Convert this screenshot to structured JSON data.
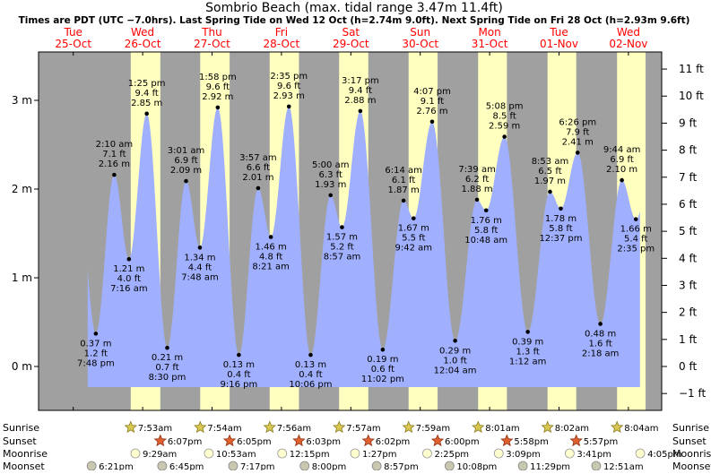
{
  "title": "Sombrio Beach (max. tidal range 3.47m 11.4ft)",
  "subtitle": "Times are PDT (UTC −7.0hrs). Last Spring Tide on Wed 12 Oct (h=2.74m 9.0ft). Next Spring Tide on Fri 28 Oct (h=2.93m 9.6ft)",
  "colors": {
    "day": "#ffffc0",
    "night": "#a0a0a0",
    "water": "#a0b0ff",
    "date_red": "#ff0000"
  },
  "chart_data": {
    "type": "area",
    "y_left_ticks": [
      {
        "v": 0,
        "label": "0 m"
      },
      {
        "v": 1,
        "label": "1 m"
      },
      {
        "v": 2,
        "label": "2 m"
      },
      {
        "v": 3,
        "label": "3 m"
      }
    ],
    "y_right_ticks": [
      {
        "ft": -1,
        "label": "−1 ft"
      },
      {
        "ft": 0,
        "label": "0 ft"
      },
      {
        "ft": 1,
        "label": "1 ft"
      },
      {
        "ft": 2,
        "label": "2 ft"
      },
      {
        "ft": 3,
        "label": "3 ft"
      },
      {
        "ft": 4,
        "label": "4 ft"
      },
      {
        "ft": 5,
        "label": "5 ft"
      },
      {
        "ft": 6,
        "label": "6 ft"
      },
      {
        "ft": 7,
        "label": "7 ft"
      },
      {
        "ft": 8,
        "label": "8 ft"
      },
      {
        "ft": 9,
        "label": "9 ft"
      },
      {
        "ft": 10,
        "label": "10 ft"
      },
      {
        "ft": 11,
        "label": "11 ft"
      }
    ],
    "days": [
      {
        "dow": "Tue",
        "date": "25-Oct"
      },
      {
        "dow": "Wed",
        "date": "26-Oct"
      },
      {
        "dow": "Thu",
        "date": "27-Oct"
      },
      {
        "dow": "Fri",
        "date": "28-Oct"
      },
      {
        "dow": "Sat",
        "date": "29-Oct"
      },
      {
        "dow": "Sun",
        "date": "30-Oct"
      },
      {
        "dow": "Mon",
        "date": "31-Oct"
      },
      {
        "dow": "Tue",
        "date": "01-Nov"
      },
      {
        "dow": "Wed",
        "date": "02-Nov"
      }
    ],
    "daylight": [
      {
        "rise": "2016-10-26 07:53",
        "set": "2016-10-26 18:07"
      },
      {
        "rise": "2016-10-27 07:54",
        "set": "2016-10-27 18:05"
      },
      {
        "rise": "2016-10-28 07:56",
        "set": "2016-10-28 18:03"
      },
      {
        "rise": "2016-10-29 07:57",
        "set": "2016-10-29 18:02"
      },
      {
        "rise": "2016-10-30 07:59",
        "set": "2016-10-30 18:00"
      },
      {
        "rise": "2016-10-31 08:01",
        "set": "2016-10-31 17:58"
      },
      {
        "rise": "2016-11-01 08:02",
        "set": "2016-11-01 17:57"
      },
      {
        "rise": "2016-11-02 08:04",
        "set": "2016-11-02 17:56"
      }
    ],
    "tides": [
      {
        "t": "2016-10-25 19:48",
        "m": 0.37,
        "m_label": "0.37 m",
        "ft_label": "1.2 ft",
        "time_label": "7:48 pm",
        "type": "low"
      },
      {
        "t": "2016-10-26 02:10",
        "m": 2.16,
        "m_label": "2.16 m",
        "ft_label": "7.1 ft",
        "time_label": "2:10 am",
        "type": "high"
      },
      {
        "t": "2016-10-26 07:16",
        "m": 1.21,
        "m_label": "1.21 m",
        "ft_label": "4.0 ft",
        "time_label": "7:16 am",
        "type": "low"
      },
      {
        "t": "2016-10-26 13:25",
        "m": 2.85,
        "m_label": "2.85 m",
        "ft_label": "9.4 ft",
        "time_label": "1:25 pm",
        "type": "high"
      },
      {
        "t": "2016-10-26 20:30",
        "m": 0.21,
        "m_label": "0.21 m",
        "ft_label": "0.7 ft",
        "time_label": "8:30 pm",
        "type": "low"
      },
      {
        "t": "2016-10-27 03:01",
        "m": 2.09,
        "m_label": "2.09 m",
        "ft_label": "6.9 ft",
        "time_label": "3:01 am",
        "type": "high"
      },
      {
        "t": "2016-10-27 07:48",
        "m": 1.34,
        "m_label": "1.34 m",
        "ft_label": "4.4 ft",
        "time_label": "7:48 am",
        "type": "low"
      },
      {
        "t": "2016-10-27 13:58",
        "m": 2.92,
        "m_label": "2.92 m",
        "ft_label": "9.6 ft",
        "time_label": "1:58 pm",
        "type": "high"
      },
      {
        "t": "2016-10-27 21:16",
        "m": 0.13,
        "m_label": "0.13 m",
        "ft_label": "0.4 ft",
        "time_label": "9:16 pm",
        "type": "low"
      },
      {
        "t": "2016-10-28 03:57",
        "m": 2.01,
        "m_label": "2.01 m",
        "ft_label": "6.6 ft",
        "time_label": "3:57 am",
        "type": "high"
      },
      {
        "t": "2016-10-28 08:21",
        "m": 1.46,
        "m_label": "1.46 m",
        "ft_label": "4.8 ft",
        "time_label": "8:21 am",
        "type": "low"
      },
      {
        "t": "2016-10-28 14:35",
        "m": 2.93,
        "m_label": "2.93 m",
        "ft_label": "9.6 ft",
        "time_label": "2:35 pm",
        "type": "high"
      },
      {
        "t": "2016-10-28 22:06",
        "m": 0.13,
        "m_label": "0.13 m",
        "ft_label": "0.4 ft",
        "time_label": "10:06 pm",
        "type": "low"
      },
      {
        "t": "2016-10-29 05:00",
        "m": 1.93,
        "m_label": "1.93 m",
        "ft_label": "6.3 ft",
        "time_label": "5:00 am",
        "type": "high"
      },
      {
        "t": "2016-10-29 08:57",
        "m": 1.57,
        "m_label": "1.57 m",
        "ft_label": "5.2 ft",
        "time_label": "8:57 am",
        "type": "low"
      },
      {
        "t": "2016-10-29 15:17",
        "m": 2.88,
        "m_label": "2.88 m",
        "ft_label": "9.4 ft",
        "time_label": "3:17 pm",
        "type": "high"
      },
      {
        "t": "2016-10-29 23:02",
        "m": 0.19,
        "m_label": "0.19 m",
        "ft_label": "0.6 ft",
        "time_label": "11:02 pm",
        "type": "low"
      },
      {
        "t": "2016-10-30 06:14",
        "m": 1.87,
        "m_label": "1.87 m",
        "ft_label": "6.1 ft",
        "time_label": "6:14 am",
        "type": "high"
      },
      {
        "t": "2016-10-30 09:42",
        "m": 1.67,
        "m_label": "1.67 m",
        "ft_label": "5.5 ft",
        "time_label": "9:42 am",
        "type": "low"
      },
      {
        "t": "2016-10-30 16:07",
        "m": 2.76,
        "m_label": "2.76 m",
        "ft_label": "9.1 ft",
        "time_label": "4:07 pm",
        "type": "high"
      },
      {
        "t": "2016-10-31 00:04",
        "m": 0.29,
        "m_label": "0.29 m",
        "ft_label": "1.0 ft",
        "time_label": "12:04 am",
        "type": "low"
      },
      {
        "t": "2016-10-31 07:39",
        "m": 1.88,
        "m_label": "1.88 m",
        "ft_label": "6.2 ft",
        "time_label": "7:39 am",
        "type": "high"
      },
      {
        "t": "2016-10-31 10:48",
        "m": 1.76,
        "m_label": "1.76 m",
        "ft_label": "5.8 ft",
        "time_label": "10:48 am",
        "type": "low"
      },
      {
        "t": "2016-10-31 17:08",
        "m": 2.59,
        "m_label": "2.59 m",
        "ft_label": "8.5 ft",
        "time_label": "5:08 pm",
        "type": "high"
      },
      {
        "t": "2016-11-01 01:12",
        "m": 0.39,
        "m_label": "0.39 m",
        "ft_label": "1.3 ft",
        "time_label": "1:12 am",
        "type": "low"
      },
      {
        "t": "2016-11-01 08:53",
        "m": 1.97,
        "m_label": "1.97 m",
        "ft_label": "6.5 ft",
        "time_label": "8:53 am",
        "type": "high"
      },
      {
        "t": "2016-11-01 12:37",
        "m": 1.78,
        "m_label": "1.78 m",
        "ft_label": "5.8 ft",
        "time_label": "12:37 pm",
        "type": "low"
      },
      {
        "t": "2016-11-01 18:26",
        "m": 2.41,
        "m_label": "2.41 m",
        "ft_label": "7.9 ft",
        "time_label": "6:26 pm",
        "type": "high"
      },
      {
        "t": "2016-11-02 02:18",
        "m": 0.48,
        "m_label": "0.48 m",
        "ft_label": "1.6 ft",
        "time_label": "2:18 am",
        "type": "low"
      },
      {
        "t": "2016-11-02 09:44",
        "m": 2.1,
        "m_label": "2.10 m",
        "ft_label": "6.9 ft",
        "time_label": "9:44 am",
        "type": "high"
      },
      {
        "t": "2016-11-02 14:35",
        "m": 1.66,
        "m_label": "1.66 m",
        "ft_label": "5.4 ft",
        "time_label": "2:35 pm",
        "type": "low"
      }
    ],
    "bottom_rows": [
      {
        "name": "Sunrise",
        "icon": "sun-icon",
        "events": [
          {
            "t": "2016-10-26 07:53",
            "label": "7:53am"
          },
          {
            "t": "2016-10-27 07:54",
            "label": "7:54am"
          },
          {
            "t": "2016-10-28 07:56",
            "label": "7:56am"
          },
          {
            "t": "2016-10-29 07:57",
            "label": "7:57am"
          },
          {
            "t": "2016-10-30 07:59",
            "label": "7:59am"
          },
          {
            "t": "2016-10-31 08:01",
            "label": "8:01am"
          },
          {
            "t": "2016-11-01 08:02",
            "label": "8:02am"
          },
          {
            "t": "2016-11-02 08:04",
            "label": "8:04am"
          }
        ]
      },
      {
        "name": "Sunset",
        "icon": "sunset-icon",
        "events": [
          {
            "t": "2016-10-26 18:07",
            "label": "6:07pm"
          },
          {
            "t": "2016-10-27 18:05",
            "label": "6:05pm"
          },
          {
            "t": "2016-10-28 18:03",
            "label": "6:03pm"
          },
          {
            "t": "2016-10-29 18:02",
            "label": "6:02pm"
          },
          {
            "t": "2016-10-30 18:00",
            "label": "6:00pm"
          },
          {
            "t": "2016-10-31 17:58",
            "label": "5:58pm"
          },
          {
            "t": "2016-11-01 17:57",
            "label": "5:57pm"
          }
        ]
      },
      {
        "name": "Moonrise",
        "icon": "moonrise-icon",
        "events": [
          {
            "t": "2016-10-26 09:29",
            "label": "9:29am"
          },
          {
            "t": "2016-10-27 10:53",
            "label": "10:53am"
          },
          {
            "t": "2016-10-28 12:15",
            "label": "12:15pm"
          },
          {
            "t": "2016-10-29 13:27",
            "label": "1:27pm"
          },
          {
            "t": "2016-10-30 14:25",
            "label": "2:25pm"
          },
          {
            "t": "2016-10-31 15:09",
            "label": "3:09pm"
          },
          {
            "t": "2016-11-01 15:41",
            "label": "3:41pm"
          },
          {
            "t": "2016-11-02 16:05",
            "label": "4:05pm"
          }
        ]
      },
      {
        "name": "Moonset",
        "icon": "moonset-icon",
        "events": [
          {
            "t": "2016-10-25 18:21",
            "label": "6:21pm"
          },
          {
            "t": "2016-10-26 18:45",
            "label": "6:45pm"
          },
          {
            "t": "2016-10-27 19:17",
            "label": "7:17pm"
          },
          {
            "t": "2016-10-28 20:00",
            "label": "8:00pm"
          },
          {
            "t": "2016-10-29 20:57",
            "label": "8:57pm"
          },
          {
            "t": "2016-10-30 22:08",
            "label": "10:08pm"
          },
          {
            "t": "2016-10-31 23:29",
            "label": "11:29pm"
          },
          {
            "t": "2016-11-02 00:51",
            "label": "12:51am"
          }
        ]
      }
    ]
  }
}
